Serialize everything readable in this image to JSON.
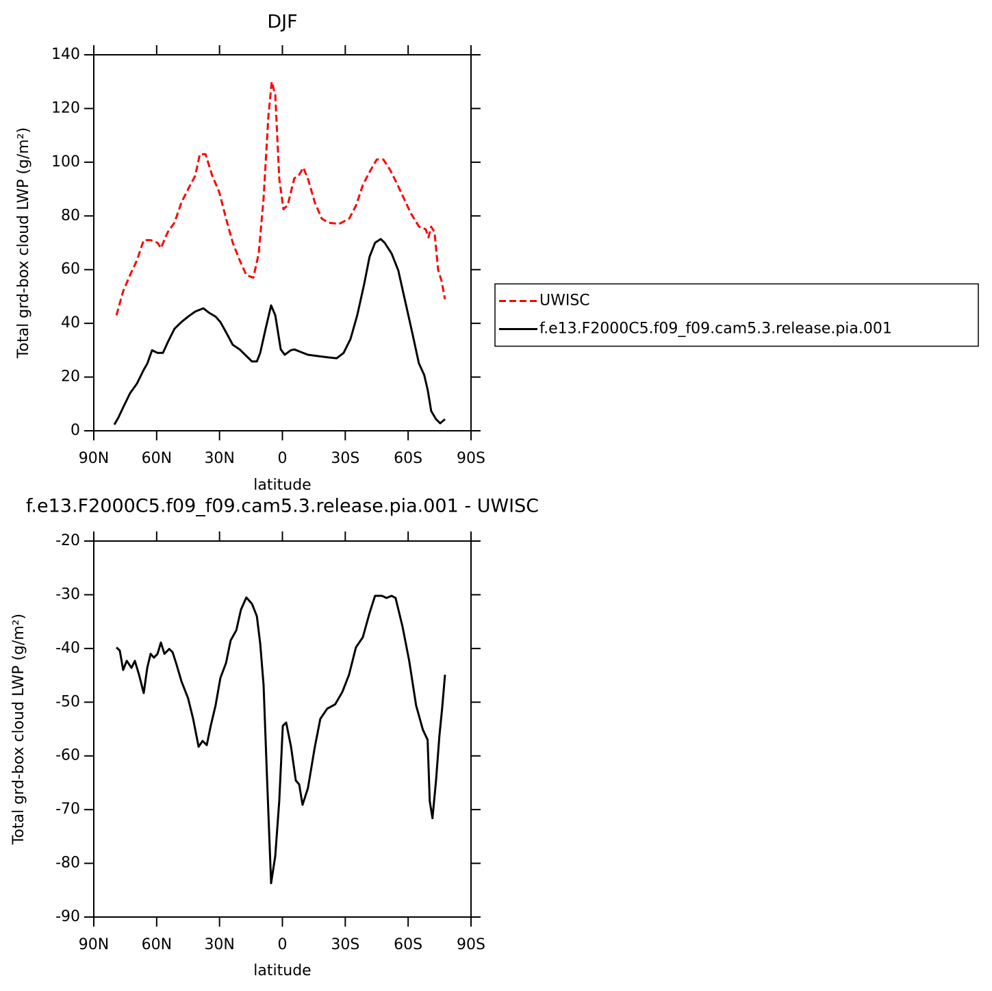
{
  "chart_data": [
    {
      "type": "line",
      "title": "DJF",
      "xlabel": "latitude",
      "ylabel": "Total grd-box cloud LWP (g/m²)",
      "xlim": [
        90,
        -90
      ],
      "xticks": [
        {
          "value": 90,
          "label": "90N"
        },
        {
          "value": 60,
          "label": "60N"
        },
        {
          "value": 30,
          "label": "30N"
        },
        0,
        {
          "value": -30,
          "label": "30S"
        },
        {
          "value": -60,
          "label": "60S"
        },
        {
          "value": -90,
          "label": "90S"
        }
      ],
      "ylim": [
        0,
        140
      ],
      "yticks": [
        0,
        20,
        40,
        60,
        80,
        100,
        120,
        140
      ],
      "legend": "right",
      "series": [
        {
          "name": "UWISC",
          "color": "#ff0000",
          "dash": true,
          "x": [
            79.2,
            76,
            72.7,
            69.4,
            66.2,
            62.9,
            59.6,
            58,
            54.7,
            51.5,
            48.2,
            45,
            41.6,
            39.4,
            36.7,
            33.5,
            30.2,
            26.9,
            23.7,
            20.4,
            17.2,
            13.9,
            11.3,
            9,
            6.7,
            5.1,
            3.4,
            1.5,
            -0.5,
            -2.5,
            -5.7,
            -7.7,
            -10,
            -12.3,
            -15.5,
            -18.8,
            -22,
            -27,
            -31.9,
            -35.2,
            -38.4,
            -41.7,
            -45,
            -48.2,
            -51.5,
            -54.7,
            -58,
            -61.3,
            -65.2,
            -68.4,
            -69.7,
            -71,
            -72.6,
            -74.3,
            -75.9,
            -77.6
          ],
          "values": [
            43,
            52,
            58,
            63.5,
            71,
            71,
            70,
            68,
            74,
            77.5,
            85,
            90,
            95,
            103,
            103,
            95,
            89,
            79,
            70,
            63.5,
            58,
            57,
            66,
            86.5,
            117,
            130,
            125,
            94,
            82.5,
            84,
            94,
            95,
            98,
            93.5,
            85,
            79,
            77.5,
            77,
            79,
            84,
            91.5,
            96.5,
            101,
            101,
            97,
            92,
            86.5,
            81,
            76,
            75,
            72,
            76,
            74,
            60,
            56,
            49
          ]
        },
        {
          "name": "f.e13.F2000C5.f09_f09.cam5.3.release.pia.001",
          "color": "#000000",
          "dash": false,
          "x": [
            80.2,
            78.2,
            76,
            72.7,
            69.4,
            66.2,
            64.5,
            62.2,
            59.6,
            57,
            54.7,
            51.5,
            48.2,
            45,
            41.6,
            37.7,
            35.1,
            31.9,
            29.6,
            26.9,
            23.7,
            20.4,
            17.8,
            14.5,
            12.2,
            10.6,
            8,
            5.4,
            3.4,
            0.8,
            -1.1,
            -4,
            -5.7,
            -8.9,
            -12.2,
            -17.1,
            -22,
            -25.9,
            -29.2,
            -32.5,
            -35.7,
            -39,
            -41.6,
            -44.2,
            -46.9,
            -48.8,
            -52.1,
            -55.3,
            -58.6,
            -61.9,
            -65.1,
            -67.7,
            -69.4,
            -71,
            -73.3,
            -75.3,
            -77.6
          ],
          "values": [
            2.3,
            5,
            8.7,
            14,
            17.6,
            22.7,
            25,
            30,
            29,
            29,
            33,
            38,
            40.5,
            42.5,
            44.4,
            45.6,
            44,
            42.5,
            40.5,
            36.7,
            32,
            30.3,
            28.3,
            25.8,
            25.8,
            29,
            38,
            46.7,
            43,
            30.3,
            28.3,
            30,
            30.3,
            29.3,
            28.3,
            27.8,
            27.3,
            27,
            29,
            34.2,
            43,
            54.6,
            64.8,
            70,
            71.4,
            70,
            66,
            59.7,
            48.2,
            36.7,
            25.2,
            20.7,
            15,
            7.4,
            4.3,
            2.8,
            4.3
          ]
        }
      ]
    },
    {
      "type": "line",
      "title": "f.e13.F2000C5.f09_f09.cam5.3.release.pia.001 - UWISC",
      "xlabel": "latitude",
      "ylabel": "Total grd-box cloud LWP (g/m²)",
      "xlim": [
        90,
        -90
      ],
      "xticks": [
        {
          "value": 90,
          "label": "90N"
        },
        {
          "value": 60,
          "label": "60N"
        },
        {
          "value": 30,
          "label": "30N"
        },
        0,
        {
          "value": -30,
          "label": "30S"
        },
        {
          "value": -60,
          "label": "60S"
        },
        {
          "value": -90,
          "label": "90S"
        }
      ],
      "ylim": [
        -90,
        -20
      ],
      "yticks": [
        -90,
        -80,
        -70,
        -60,
        -50,
        -40,
        -30,
        -20
      ],
      "series": [
        {
          "color": "#000000",
          "dash": false,
          "x": [
            79.2,
            77.6,
            76,
            74.3,
            72,
            70.4,
            68.4,
            66.2,
            64.5,
            62.9,
            61.3,
            59.6,
            58,
            56.3,
            54,
            52.4,
            50.5,
            48.2,
            45,
            42.6,
            40,
            38.1,
            36.1,
            34.2,
            31.9,
            29.6,
            26.9,
            24.7,
            22,
            19.8,
            17.2,
            14.5,
            12.2,
            10.6,
            9,
            7.3,
            5.4,
            3.4,
            1.5,
            -0.2,
            -1.8,
            -4.1,
            -6.4,
            -8,
            -9.6,
            -12.2,
            -15.5,
            -18.1,
            -21.4,
            -25.2,
            -28.6,
            -31.8,
            -35.1,
            -38.4,
            -41.6,
            -44.2,
            -47.5,
            -49.7,
            -52.1,
            -54,
            -57.3,
            -60.5,
            -63.8,
            -67,
            -69.3,
            -70.3,
            -71.6,
            -73.3,
            -74.9,
            -76.2,
            -77.6
          ],
          "values": [
            -39.8,
            -40.4,
            -44,
            -42.3,
            -43.6,
            -42.3,
            -44.9,
            -48.3,
            -43.6,
            -41,
            -41.7,
            -41,
            -38.9,
            -41,
            -40.1,
            -40.7,
            -43,
            -46.1,
            -49.3,
            -53.1,
            -58.3,
            -57.2,
            -58,
            -54.4,
            -50.6,
            -45.5,
            -42.7,
            -38.5,
            -36.6,
            -32.8,
            -30.5,
            -31.7,
            -34,
            -39.1,
            -46.8,
            -64.6,
            -83.7,
            -78.6,
            -68.4,
            -54.4,
            -53.8,
            -58.3,
            -64.6,
            -65.3,
            -69.1,
            -66,
            -58.3,
            -53.1,
            -51.2,
            -50.4,
            -48.1,
            -44.9,
            -39.8,
            -37.9,
            -33.4,
            -30.2,
            -30.2,
            -30.6,
            -30.2,
            -30.6,
            -35.9,
            -42.3,
            -50.6,
            -55.1,
            -57,
            -68.4,
            -71.6,
            -64.6,
            -56.3,
            -51.2,
            -44.9
          ]
        }
      ]
    }
  ]
}
